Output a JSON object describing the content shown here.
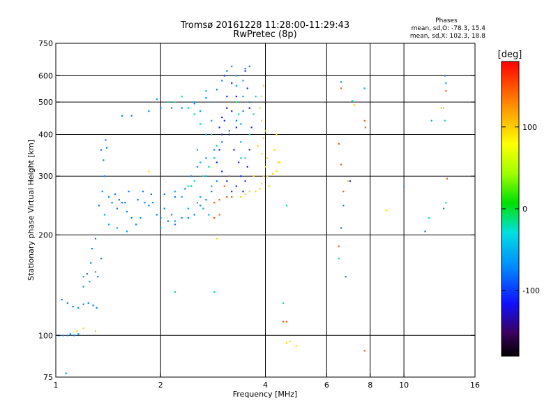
{
  "header": {
    "title_line1": "Tromsø 20161228 11:28:00-11:29:43",
    "title_line2": "RwPretec (8p)",
    "phases_title": "Phases",
    "phases_o": "mean, sd,O: -78.3, 15.4",
    "phases_x": "mean, sd,X: 102.3, 18.8"
  },
  "chart_data": {
    "type": "scatter",
    "xlabel": "Frequency [MHz]",
    "ylabel": "Stationary phase Virtual Height [km]",
    "xscale": "log",
    "yscale": "log",
    "xlim": [
      1,
      16
    ],
    "ylim": [
      75,
      750
    ],
    "x_ticks": [
      1,
      2,
      4,
      6,
      8,
      10,
      16
    ],
    "x_tick_labels": [
      "1",
      "2",
      "4",
      "6",
      "8",
      "10",
      "16"
    ],
    "y_ticks": [
      75,
      100,
      200,
      300,
      400,
      500,
      600,
      750
    ],
    "y_tick_labels": [
      "75",
      "100",
      "200",
      "300",
      "400",
      "500",
      "600",
      "750"
    ],
    "grid_x": [
      2,
      4,
      6,
      8,
      10
    ],
    "grid_y": [
      100,
      200,
      300,
      400,
      500,
      600
    ],
    "colorbar": {
      "label": "[deg]",
      "range": [
        -180,
        180
      ],
      "ticks": [
        100,
        0,
        -100
      ],
      "tick_labels": [
        "100",
        "0",
        "-100"
      ]
    },
    "series": [
      {
        "phase": -78,
        "points": [
          [
            1.02,
            100
          ],
          [
            1.05,
            100
          ],
          [
            1.08,
            100
          ],
          [
            1.1,
            101
          ],
          [
            1.13,
            100
          ],
          [
            1.16,
            101
          ],
          [
            1.04,
            128
          ],
          [
            1.08,
            125
          ],
          [
            1.12,
            122
          ],
          [
            1.16,
            121
          ],
          [
            1.2,
            124
          ],
          [
            1.24,
            125
          ],
          [
            1.28,
            123
          ],
          [
            1.31,
            121
          ],
          [
            1.2,
            140
          ],
          [
            1.23,
            153
          ],
          [
            1.26,
            165
          ],
          [
            1.27,
            182
          ],
          [
            1.3,
            195
          ],
          [
            1.32,
            150
          ],
          [
            1.35,
            170
          ],
          [
            1.33,
            245
          ],
          [
            1.36,
            270
          ],
          [
            1.38,
            300
          ],
          [
            1.37,
            335
          ],
          [
            1.4,
            365
          ],
          [
            1.39,
            385
          ],
          [
            1.35,
            360
          ],
          [
            1.45,
            250
          ],
          [
            1.5,
            240
          ],
          [
            1.55,
            250
          ],
          [
            1.6,
            235
          ],
          [
            1.65,
            225
          ],
          [
            1.7,
            215
          ],
          [
            1.75,
            225
          ],
          [
            1.8,
            250
          ],
          [
            1.85,
            245
          ],
          [
            1.9,
            250
          ],
          [
            1.95,
            230
          ],
          [
            2.0,
            225
          ],
          [
            2.05,
            240
          ],
          [
            2.1,
            220
          ],
          [
            2.15,
            230
          ],
          [
            2.2,
            215
          ],
          [
            2.3,
            225
          ],
          [
            2.4,
            225
          ],
          [
            2.5,
            230
          ],
          [
            2.6,
            245
          ],
          [
            2.7,
            255
          ],
          [
            2.8,
            270
          ],
          [
            2.9,
            290
          ],
          [
            1.55,
            455
          ],
          [
            1.65,
            455
          ],
          [
            1.85,
            470
          ],
          [
            2.0,
            480
          ],
          [
            2.15,
            480
          ],
          [
            2.3,
            480
          ],
          [
            2.5,
            495
          ],
          [
            2.7,
            515
          ],
          [
            2.9,
            545
          ],
          [
            3.0,
            580
          ],
          [
            3.1,
            620
          ],
          [
            3.2,
            640
          ],
          [
            3.5,
            630
          ],
          [
            3.6,
            640
          ],
          [
            2.35,
            275
          ],
          [
            2.45,
            300
          ],
          [
            2.55,
            320
          ],
          [
            2.7,
            340
          ],
          [
            2.85,
            360
          ],
          [
            3.0,
            380
          ],
          [
            3.15,
            410
          ],
          [
            3.3,
            440
          ],
          [
            3.45,
            470
          ],
          [
            3.6,
            500
          ],
          [
            1.42,
            260
          ],
          [
            1.48,
            265
          ],
          [
            1.52,
            255
          ],
          [
            1.58,
            250
          ],
          [
            1.62,
            270
          ],
          [
            1.72,
            255
          ],
          [
            1.78,
            270
          ],
          [
            1.88,
            265
          ],
          [
            2.05,
            265
          ],
          [
            2.2,
            260
          ],
          [
            6.6,
            575
          ],
          [
            6.7,
            245
          ],
          [
            6.6,
            210
          ],
          [
            6.8,
            150
          ],
          [
            11.5,
            205
          ],
          [
            13.0,
            240
          ],
          [
            13.1,
            600
          ]
        ]
      },
      {
        "phase": -110,
        "points": [
          [
            3.05,
            600
          ],
          [
            3.2,
            570
          ],
          [
            3.3,
            520
          ],
          [
            3.1,
            520
          ],
          [
            3.2,
            470
          ],
          [
            3.3,
            420
          ],
          [
            3.15,
            400
          ],
          [
            3.25,
            360
          ],
          [
            3.35,
            330
          ],
          [
            3.4,
            300
          ],
          [
            3.3,
            280
          ],
          [
            3.2,
            270
          ],
          [
            3.1,
            290
          ],
          [
            3.0,
            310
          ],
          [
            3.5,
            620
          ],
          [
            3.55,
            550
          ],
          [
            3.6,
            480
          ],
          [
            3.65,
            420
          ],
          [
            3.6,
            360
          ],
          [
            3.55,
            320
          ],
          [
            3.5,
            290
          ],
          [
            3.45,
            270
          ],
          [
            2.9,
            330
          ],
          [
            2.95,
            360
          ],
          [
            3.0,
            400
          ],
          [
            3.05,
            440
          ],
          [
            3.1,
            480
          ],
          [
            3.0,
            450
          ],
          [
            2.95,
            420
          ],
          [
            7.0,
            290
          ]
        ]
      },
      {
        "phase": -60,
        "points": [
          [
            1.2,
            150
          ],
          [
            1.25,
            145
          ],
          [
            1.3,
            155
          ],
          [
            1.38,
            230
          ],
          [
            1.42,
            215
          ],
          [
            1.5,
            210
          ],
          [
            1.6,
            205
          ],
          [
            2.0,
            210
          ],
          [
            2.2,
            220
          ],
          [
            2.4,
            240
          ],
          [
            2.6,
            260
          ],
          [
            2.8,
            280
          ],
          [
            2.7,
            300
          ],
          [
            2.6,
            330
          ],
          [
            2.55,
            360
          ],
          [
            2.7,
            400
          ],
          [
            2.8,
            440
          ],
          [
            2.6,
            470
          ],
          [
            2.5,
            500
          ],
          [
            2.7,
            540
          ],
          [
            2.8,
            500
          ],
          [
            3.4,
            380
          ],
          [
            3.4,
            430
          ],
          [
            3.45,
            520
          ],
          [
            3.45,
            580
          ],
          [
            3.3,
            600
          ],
          [
            3.3,
            560
          ],
          [
            2.3,
            260
          ],
          [
            2.2,
            270
          ],
          [
            2.45,
            280
          ],
          [
            2.55,
            250
          ],
          [
            2.65,
            240
          ],
          [
            2.75,
            230
          ],
          [
            1.95,
            510
          ],
          [
            13.2,
            570
          ],
          [
            10.0,
            280
          ],
          [
            12.0,
            440
          ],
          [
            7.7,
            550
          ],
          [
            1.07,
            77
          ]
        ]
      },
      {
        "phase": -20,
        "points": [
          [
            2.4,
            280
          ],
          [
            2.5,
            290
          ],
          [
            2.65,
            300
          ],
          [
            2.75,
            320
          ],
          [
            2.85,
            340
          ],
          [
            2.9,
            370
          ],
          [
            2.8,
            400
          ],
          [
            2.6,
            430
          ],
          [
            2.5,
            460
          ],
          [
            2.4,
            480
          ],
          [
            2.2,
            500
          ],
          [
            2.1,
            500
          ],
          [
            2.3,
            520
          ],
          [
            3.3,
            500
          ],
          [
            3.35,
            460
          ],
          [
            3.4,
            340
          ],
          [
            3.5,
            340
          ],
          [
            3.6,
            400
          ],
          [
            3.7,
            460
          ],
          [
            3.75,
            520
          ],
          [
            2.2,
            135
          ],
          [
            2.85,
            135
          ],
          [
            4.6,
            245
          ],
          [
            4.5,
            125
          ],
          [
            6.5,
            170
          ],
          [
            13.1,
            440
          ],
          [
            13.2,
            250
          ],
          [
            11.8,
            225
          ],
          [
            7.1,
            505
          ]
        ]
      },
      {
        "phase": 100,
        "points": [
          [
            3.75,
            270
          ],
          [
            3.85,
            275
          ],
          [
            3.9,
            285
          ],
          [
            3.95,
            300
          ],
          [
            4.0,
            320
          ],
          [
            4.05,
            340
          ],
          [
            3.9,
            350
          ],
          [
            3.8,
            370
          ],
          [
            3.95,
            390
          ],
          [
            4.0,
            410
          ],
          [
            3.9,
            440
          ],
          [
            3.85,
            480
          ],
          [
            3.9,
            520
          ],
          [
            3.95,
            560
          ],
          [
            4.05,
            300
          ],
          [
            4.1,
            280
          ],
          [
            3.7,
            300
          ],
          [
            3.6,
            270
          ],
          [
            3.5,
            265
          ],
          [
            3.4,
            260
          ],
          [
            4.2,
            305
          ],
          [
            4.3,
            310
          ],
          [
            4.35,
            330
          ],
          [
            4.25,
            360
          ],
          [
            4.4,
            330
          ],
          [
            4.3,
            400
          ],
          [
            4.6,
            95
          ],
          [
            4.7,
            96
          ],
          [
            4.9,
            93
          ],
          [
            6.9,
            290
          ],
          [
            7.2,
            490
          ],
          [
            12.8,
            480
          ],
          [
            13.0,
            480
          ],
          [
            8.9,
            237
          ],
          [
            1.3,
            103
          ],
          [
            1.2,
            105
          ],
          [
            1.15,
            103
          ],
          [
            1.85,
            310
          ],
          [
            2.9,
            195
          ]
        ]
      },
      {
        "phase": 150,
        "points": [
          [
            3.05,
            280
          ],
          [
            3.1,
            260
          ],
          [
            2.95,
            255
          ],
          [
            2.85,
            250
          ],
          [
            3.2,
            260
          ],
          [
            3.15,
            300
          ],
          [
            4.6,
            110
          ],
          [
            6.6,
            325
          ],
          [
            6.7,
            270
          ],
          [
            6.5,
            185
          ],
          [
            7.7,
            440
          ],
          [
            7.75,
            420
          ],
          [
            13.2,
            540
          ],
          [
            13.3,
            295
          ],
          [
            7.7,
            90
          ],
          [
            2.85,
            225
          ],
          [
            2.95,
            230
          ],
          [
            6.6,
            550
          ],
          [
            6.5,
            375
          ],
          [
            4.5,
            110
          ]
        ]
      }
    ]
  }
}
